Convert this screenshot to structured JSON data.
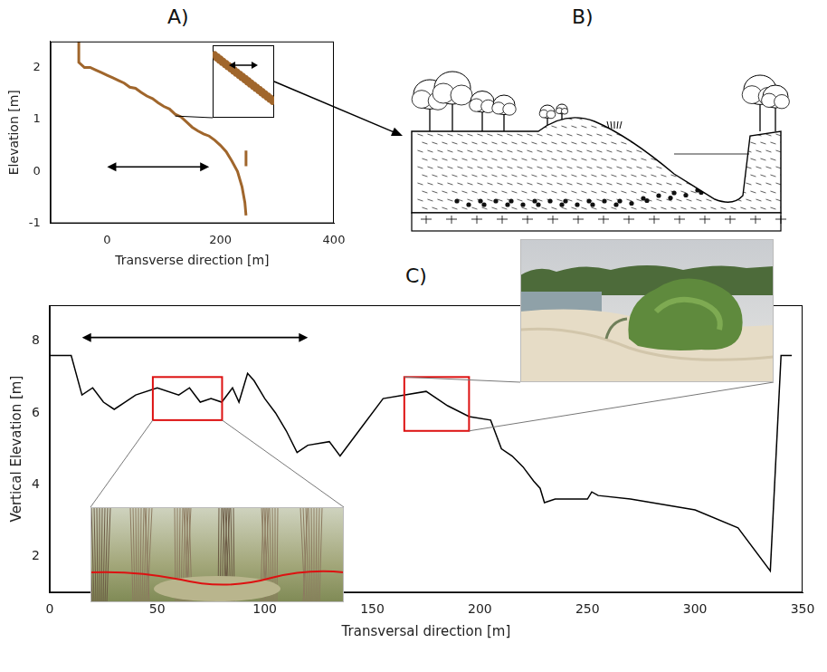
{
  "chart_data": [
    {
      "type": "line",
      "title": "A)",
      "xlabel": "Transverse direction [m]",
      "ylabel": "Elevation [m]",
      "xlim": [
        -100,
        400
      ],
      "xticks": [
        0,
        200,
        400
      ],
      "ylim": [
        -1,
        2.5
      ],
      "yticks": [
        -1,
        0,
        1,
        2
      ],
      "grid": false,
      "series": [
        {
          "color": "#a0662c",
          "line_style": "solid",
          "x": [
            -50,
            -50,
            -40,
            -30,
            -20,
            -10,
            0,
            10,
            20,
            30,
            40,
            50,
            60,
            70,
            80,
            90,
            100,
            110,
            120,
            130,
            140,
            150,
            160,
            170,
            180,
            190,
            200,
            210,
            220,
            230,
            238,
            243,
            245
          ],
          "values": [
            2.5,
            2.1,
            2.0,
            2.0,
            1.95,
            1.9,
            1.85,
            1.8,
            1.75,
            1.7,
            1.62,
            1.6,
            1.52,
            1.45,
            1.4,
            1.32,
            1.25,
            1.2,
            1.1,
            1.05,
            0.95,
            0.85,
            0.78,
            0.72,
            0.68,
            0.6,
            0.5,
            0.38,
            0.2,
            0.0,
            -0.3,
            -0.6,
            -0.85
          ]
        },
        {
          "color": "#a0662c",
          "line_style": "solid",
          "x": [
            245,
            245
          ],
          "values": [
            0.1,
            0.4
          ]
        }
      ]
    },
    {
      "type": "line",
      "title": "C)",
      "xlabel": "Transversal direction [m]",
      "ylabel": "Vertical Elevation [m]",
      "xlim": [
        0,
        350
      ],
      "xticks": [
        0,
        50,
        100,
        150,
        200,
        250,
        300,
        350
      ],
      "ylim": [
        1,
        9
      ],
      "yticks": [
        2,
        4,
        6,
        8
      ],
      "grid": false,
      "series": [
        {
          "color": "#000000",
          "line_style": "solid",
          "x": [
            0,
            10,
            15,
            20,
            25,
            30,
            35,
            40,
            50,
            60,
            65,
            70,
            75,
            80,
            85,
            88,
            92,
            95,
            100,
            105,
            110,
            115,
            120,
            130,
            135,
            145,
            155,
            175,
            185,
            195,
            205,
            210,
            215,
            220,
            225,
            228,
            230,
            235,
            250,
            252,
            255,
            270,
            300,
            320,
            335,
            340,
            345
          ],
          "values": [
            7.6,
            7.6,
            6.5,
            6.7,
            6.3,
            6.1,
            6.3,
            6.5,
            6.7,
            6.5,
            6.7,
            6.3,
            6.4,
            6.3,
            6.7,
            6.3,
            7.1,
            6.9,
            6.4,
            6.0,
            5.5,
            4.9,
            5.1,
            5.2,
            4.8,
            5.6,
            6.4,
            6.6,
            6.2,
            5.9,
            5.8,
            5.0,
            4.8,
            4.5,
            4.1,
            3.9,
            3.5,
            3.6,
            3.6,
            3.8,
            3.7,
            3.6,
            3.3,
            2.8,
            1.6,
            7.6,
            7.6
          ]
        }
      ]
    }
  ],
  "diagram": {
    "title": "B)"
  }
}
